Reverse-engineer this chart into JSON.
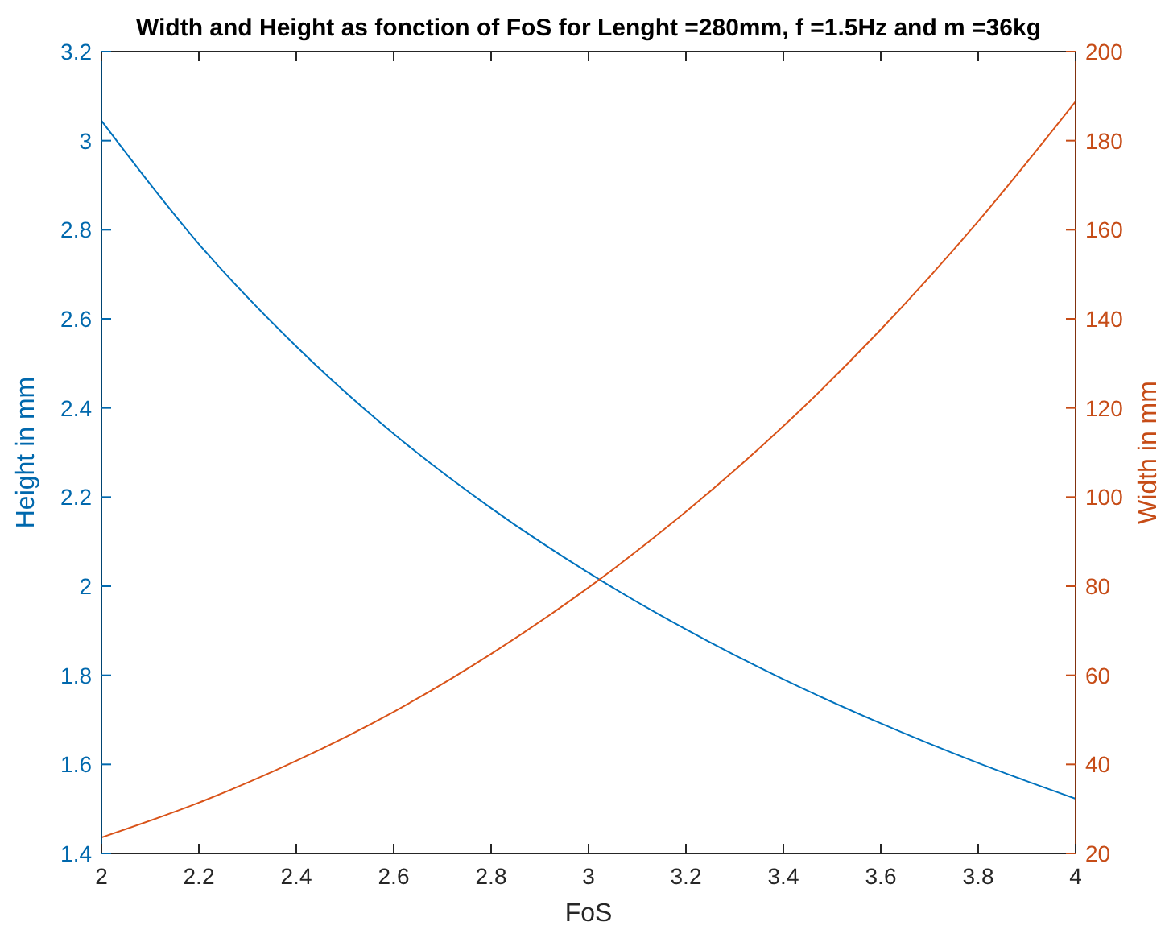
{
  "chart_data": {
    "type": "line",
    "title": "Width and Height as fonction of FoS for Lenght =280mm, f =1.5Hz and m =36kg",
    "xlabel": "FoS",
    "ylabel": "Height in mm",
    "y2label": "Width in mm",
    "x": [
      2,
      2.2,
      2.4,
      2.6,
      2.8,
      3,
      3.2,
      3.4,
      3.6,
      3.8,
      4
    ],
    "series": [
      {
        "color": "#0072bd",
        "values": [
          3.045,
          2.768,
          2.538,
          2.342,
          2.175,
          2.03,
          1.903,
          1.791,
          1.692,
          1.603,
          1.523
        ]
      },
      {
        "color": "#d95319",
        "axis": "y2",
        "values": [
          23.6,
          31.4,
          40.8,
          51.8,
          64.8,
          79.7,
          96.7,
          115.9,
          137.6,
          161.9,
          188.8
        ]
      }
    ],
    "xlim": [
      2,
      4
    ],
    "xticks": [
      2,
      2.2,
      2.4,
      2.6,
      2.8,
      3,
      3.2,
      3.4,
      3.6,
      3.8,
      4
    ],
    "ylim": [
      1.4,
      3.2
    ],
    "yticks": [
      1.4,
      1.6,
      1.8,
      2,
      2.2,
      2.4,
      2.6,
      2.8,
      3,
      3.2
    ],
    "y2lim": [
      20,
      200
    ],
    "y2ticks": [
      20,
      40,
      60,
      80,
      100,
      120,
      140,
      160,
      180,
      200
    ],
    "grid": false
  }
}
